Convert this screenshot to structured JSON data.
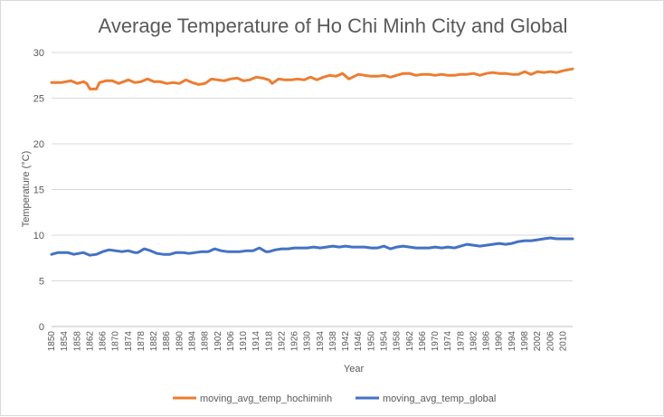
{
  "chart_data": {
    "type": "line",
    "title": "Average Temperature of Ho Chi Minh City and Global",
    "xlabel": "Year",
    "ylabel": "Temperature (°C)",
    "ylim": [
      0,
      30
    ],
    "yticks": [
      0,
      5,
      10,
      15,
      20,
      25,
      30
    ],
    "x_tick_labels": [
      "1850",
      "1854",
      "1858",
      "1862",
      "1866",
      "1870",
      "1874",
      "1878",
      "1882",
      "1886",
      "1890",
      "1894",
      "1898",
      "1902",
      "1906",
      "1910",
      "1914",
      "1918",
      "1922",
      "1926",
      "1930",
      "1934",
      "1938",
      "1942",
      "1946",
      "1950",
      "1954",
      "1958",
      "1962",
      "1966",
      "1970",
      "1974",
      "1978",
      "1982",
      "1986",
      "1990",
      "1994",
      "1998",
      "2002",
      "2006",
      "2010"
    ],
    "x_start": 1850,
    "x_end": 2013,
    "grid": true,
    "legend_position": "bottom",
    "colors": {
      "hochiminh": "#ed7d31",
      "global": "#4472c4"
    },
    "series": [
      {
        "name": "moving_avg_temp_hochiminh",
        "color": "#ed7d31",
        "keypoints": [
          [
            1850,
            26.7
          ],
          [
            1853,
            26.7
          ],
          [
            1856,
            26.9
          ],
          [
            1858,
            26.6
          ],
          [
            1860,
            26.8
          ],
          [
            1861,
            26.6
          ],
          [
            1862,
            26.0
          ],
          [
            1864,
            26.0
          ],
          [
            1865,
            26.7
          ],
          [
            1867,
            26.9
          ],
          [
            1869,
            26.9
          ],
          [
            1871,
            26.6
          ],
          [
            1874,
            27.0
          ],
          [
            1876,
            26.7
          ],
          [
            1878,
            26.8
          ],
          [
            1880,
            27.1
          ],
          [
            1882,
            26.8
          ],
          [
            1884,
            26.8
          ],
          [
            1886,
            26.6
          ],
          [
            1888,
            26.7
          ],
          [
            1890,
            26.6
          ],
          [
            1892,
            27.0
          ],
          [
            1894,
            26.7
          ],
          [
            1896,
            26.5
          ],
          [
            1898,
            26.6
          ],
          [
            1900,
            27.1
          ],
          [
            1902,
            27.0
          ],
          [
            1904,
            26.9
          ],
          [
            1906,
            27.1
          ],
          [
            1908,
            27.2
          ],
          [
            1910,
            26.9
          ],
          [
            1912,
            27.0
          ],
          [
            1914,
            27.3
          ],
          [
            1916,
            27.2
          ],
          [
            1918,
            27.0
          ],
          [
            1919,
            26.6
          ],
          [
            1921,
            27.1
          ],
          [
            1923,
            27.0
          ],
          [
            1925,
            27.0
          ],
          [
            1927,
            27.1
          ],
          [
            1929,
            27.0
          ],
          [
            1931,
            27.3
          ],
          [
            1933,
            27.0
          ],
          [
            1935,
            27.3
          ],
          [
            1937,
            27.5
          ],
          [
            1939,
            27.4
          ],
          [
            1941,
            27.7
          ],
          [
            1943,
            27.1
          ],
          [
            1946,
            27.6
          ],
          [
            1948,
            27.5
          ],
          [
            1950,
            27.4
          ],
          [
            1952,
            27.4
          ],
          [
            1954,
            27.5
          ],
          [
            1956,
            27.3
          ],
          [
            1958,
            27.5
          ],
          [
            1960,
            27.7
          ],
          [
            1962,
            27.7
          ],
          [
            1964,
            27.5
          ],
          [
            1966,
            27.6
          ],
          [
            1968,
            27.6
          ],
          [
            1970,
            27.5
          ],
          [
            1972,
            27.6
          ],
          [
            1974,
            27.5
          ],
          [
            1976,
            27.5
          ],
          [
            1978,
            27.6
          ],
          [
            1980,
            27.6
          ],
          [
            1982,
            27.7
          ],
          [
            1984,
            27.5
          ],
          [
            1986,
            27.7
          ],
          [
            1988,
            27.8
          ],
          [
            1990,
            27.7
          ],
          [
            1992,
            27.7
          ],
          [
            1994,
            27.6
          ],
          [
            1996,
            27.6
          ],
          [
            1998,
            27.9
          ],
          [
            2000,
            27.6
          ],
          [
            2002,
            27.9
          ],
          [
            2004,
            27.8
          ],
          [
            2006,
            27.9
          ],
          [
            2008,
            27.8
          ],
          [
            2010,
            28.0
          ],
          [
            2013,
            28.2
          ]
        ]
      },
      {
        "name": "moving_avg_temp_global",
        "color": "#4472c4",
        "keypoints": [
          [
            1850,
            7.9
          ],
          [
            1852,
            8.1
          ],
          [
            1855,
            8.1
          ],
          [
            1857,
            7.9
          ],
          [
            1860,
            8.1
          ],
          [
            1862,
            7.8
          ],
          [
            1864,
            7.9
          ],
          [
            1866,
            8.2
          ],
          [
            1868,
            8.4
          ],
          [
            1870,
            8.3
          ],
          [
            1872,
            8.2
          ],
          [
            1874,
            8.3
          ],
          [
            1876,
            8.1
          ],
          [
            1877,
            8.1
          ],
          [
            1879,
            8.5
          ],
          [
            1881,
            8.3
          ],
          [
            1883,
            8.0
          ],
          [
            1885,
            7.9
          ],
          [
            1887,
            7.9
          ],
          [
            1889,
            8.1
          ],
          [
            1891,
            8.1
          ],
          [
            1893,
            8.0
          ],
          [
            1895,
            8.1
          ],
          [
            1897,
            8.2
          ],
          [
            1899,
            8.2
          ],
          [
            1901,
            8.5
          ],
          [
            1903,
            8.3
          ],
          [
            1905,
            8.2
          ],
          [
            1907,
            8.2
          ],
          [
            1909,
            8.2
          ],
          [
            1911,
            8.3
          ],
          [
            1913,
            8.3
          ],
          [
            1915,
            8.6
          ],
          [
            1917,
            8.2
          ],
          [
            1918,
            8.2
          ],
          [
            1920,
            8.4
          ],
          [
            1922,
            8.5
          ],
          [
            1924,
            8.5
          ],
          [
            1926,
            8.6
          ],
          [
            1928,
            8.6
          ],
          [
            1930,
            8.6
          ],
          [
            1932,
            8.7
          ],
          [
            1934,
            8.6
          ],
          [
            1936,
            8.7
          ],
          [
            1938,
            8.8
          ],
          [
            1940,
            8.7
          ],
          [
            1942,
            8.8
          ],
          [
            1944,
            8.7
          ],
          [
            1946,
            8.7
          ],
          [
            1948,
            8.7
          ],
          [
            1950,
            8.6
          ],
          [
            1952,
            8.6
          ],
          [
            1954,
            8.8
          ],
          [
            1956,
            8.5
          ],
          [
            1958,
            8.7
          ],
          [
            1960,
            8.8
          ],
          [
            1962,
            8.7
          ],
          [
            1964,
            8.6
          ],
          [
            1966,
            8.6
          ],
          [
            1968,
            8.6
          ],
          [
            1970,
            8.7
          ],
          [
            1972,
            8.6
          ],
          [
            1974,
            8.7
          ],
          [
            1976,
            8.6
          ],
          [
            1978,
            8.8
          ],
          [
            1980,
            9.0
          ],
          [
            1982,
            8.9
          ],
          [
            1984,
            8.8
          ],
          [
            1986,
            8.9
          ],
          [
            1988,
            9.0
          ],
          [
            1990,
            9.1
          ],
          [
            1992,
            9.0
          ],
          [
            1994,
            9.1
          ],
          [
            1996,
            9.3
          ],
          [
            1998,
            9.4
          ],
          [
            2000,
            9.4
          ],
          [
            2002,
            9.5
          ],
          [
            2004,
            9.6
          ],
          [
            2006,
            9.7
          ],
          [
            2008,
            9.6
          ],
          [
            2010,
            9.6
          ],
          [
            2013,
            9.6
          ]
        ]
      }
    ]
  }
}
